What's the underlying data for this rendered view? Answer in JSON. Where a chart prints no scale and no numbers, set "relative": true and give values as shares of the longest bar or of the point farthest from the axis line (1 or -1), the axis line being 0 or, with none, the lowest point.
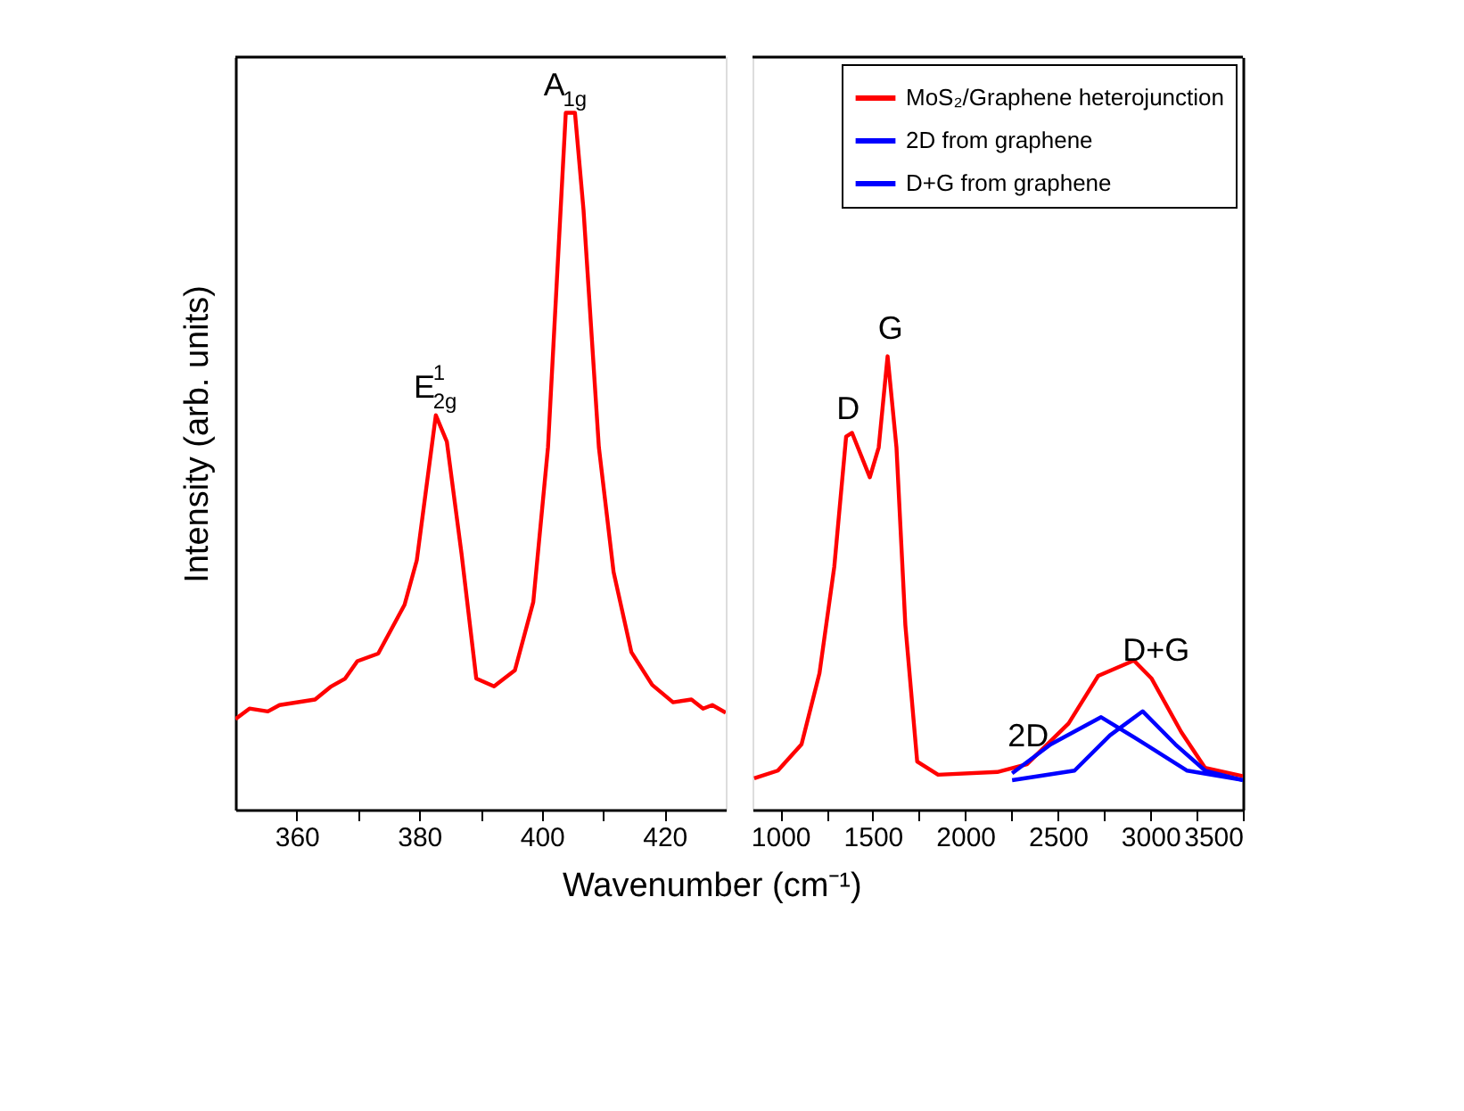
{
  "chart_data": [
    {
      "type": "line",
      "relative": true,
      "ylabel": "Intensity (arb. units)",
      "xlim": [
        350,
        430
      ],
      "xticks": [
        360,
        {
          "value": 370,
          "label": null
        },
        380,
        {
          "value": 390,
          "label": null
        },
        400,
        {
          "value": 410,
          "label": null
        },
        420
      ],
      "series": [
        {
          "color": "#ff0000",
          "x": [
            350,
            352.3,
            355.3,
            357.2,
            363,
            365.5,
            367.9,
            369.9,
            373.3,
            377.6,
            379.6,
            382.7,
            384.5,
            386.9,
            389.3,
            392.2,
            395.6,
            398.6,
            401,
            403.9,
            405.4,
            406.8,
            409.3,
            411.7,
            414.6,
            418,
            421.4,
            424.4,
            426.3,
            427.8,
            430
          ],
          "values": [
            0.13,
            0.145,
            0.141,
            0.15,
            0.158,
            0.176,
            0.188,
            0.213,
            0.224,
            0.294,
            0.358,
            0.566,
            0.528,
            0.367,
            0.188,
            0.177,
            0.2,
            0.298,
            0.52,
            1.0,
            1.0,
            0.86,
            0.52,
            0.341,
            0.226,
            0.179,
            0.154,
            0.158,
            0.145,
            0.15,
            0.139
          ]
        }
      ],
      "annotations": [
        {
          "text": "E$^{1}$$_{2g}$",
          "x": 382.7,
          "y": 0.566
        },
        {
          "text": "A$_{1g}$",
          "x": 403.9,
          "y": 1.0
        }
      ]
    },
    {
      "type": "line",
      "relative": true,
      "xlabel": "Wavenumber (cm⁻¹)",
      "xlim": [
        850,
        3500
      ],
      "legend": "top right",
      "xticks": [
        1000,
        {
          "value": 1250,
          "label": null
        },
        1500,
        {
          "value": 1750,
          "label": null
        },
        2000,
        {
          "value": 2250,
          "label": null
        },
        2500,
        {
          "value": 2750,
          "label": null
        },
        3000,
        {
          "value": 3250,
          "label": null
        },
        3500
      ],
      "series": [
        {
          "name": "MoS₂/Graphene heterojunction",
          "color": "#ff0000",
          "x": [
            859,
            987,
            1115,
            1212,
            1292,
            1356,
            1388,
            1484,
            1532,
            1580,
            1628,
            1676,
            1740,
            1853,
            2173,
            2333,
            2558,
            2718,
            2911,
            3007,
            3167,
            3296,
            3500
          ],
          "values": [
            0.069,
            0.086,
            0.144,
            0.301,
            0.536,
            0.823,
            0.831,
            0.733,
            0.799,
            1.0,
            0.799,
            0.407,
            0.106,
            0.077,
            0.083,
            0.1,
            0.19,
            0.295,
            0.329,
            0.289,
            0.171,
            0.092,
            0.074
          ]
        },
        {
          "name": "2D from graphene",
          "color": "#0000ff",
          "x": [
            2253,
            2462,
            2734,
            2974,
            3199,
            3500
          ],
          "values": [
            0.08,
            0.144,
            0.204,
            0.144,
            0.086,
            0.065
          ]
        },
        {
          "name": "D+G from graphene",
          "color": "#0000ff",
          "x": [
            2253,
            2590,
            2782,
            2958,
            3135,
            3296,
            3500
          ],
          "values": [
            0.065,
            0.086,
            0.164,
            0.217,
            0.144,
            0.086,
            0.065
          ]
        }
      ],
      "annotations": [
        {
          "text": "D",
          "x": 1356,
          "y": 0.823
        },
        {
          "text": "G",
          "x": 1580,
          "y": 1.0
        },
        {
          "text": "2D",
          "x": 2333,
          "y": 0.1
        },
        {
          "text": "D+G",
          "x": 3007,
          "y": 0.289
        }
      ]
    }
  ]
}
